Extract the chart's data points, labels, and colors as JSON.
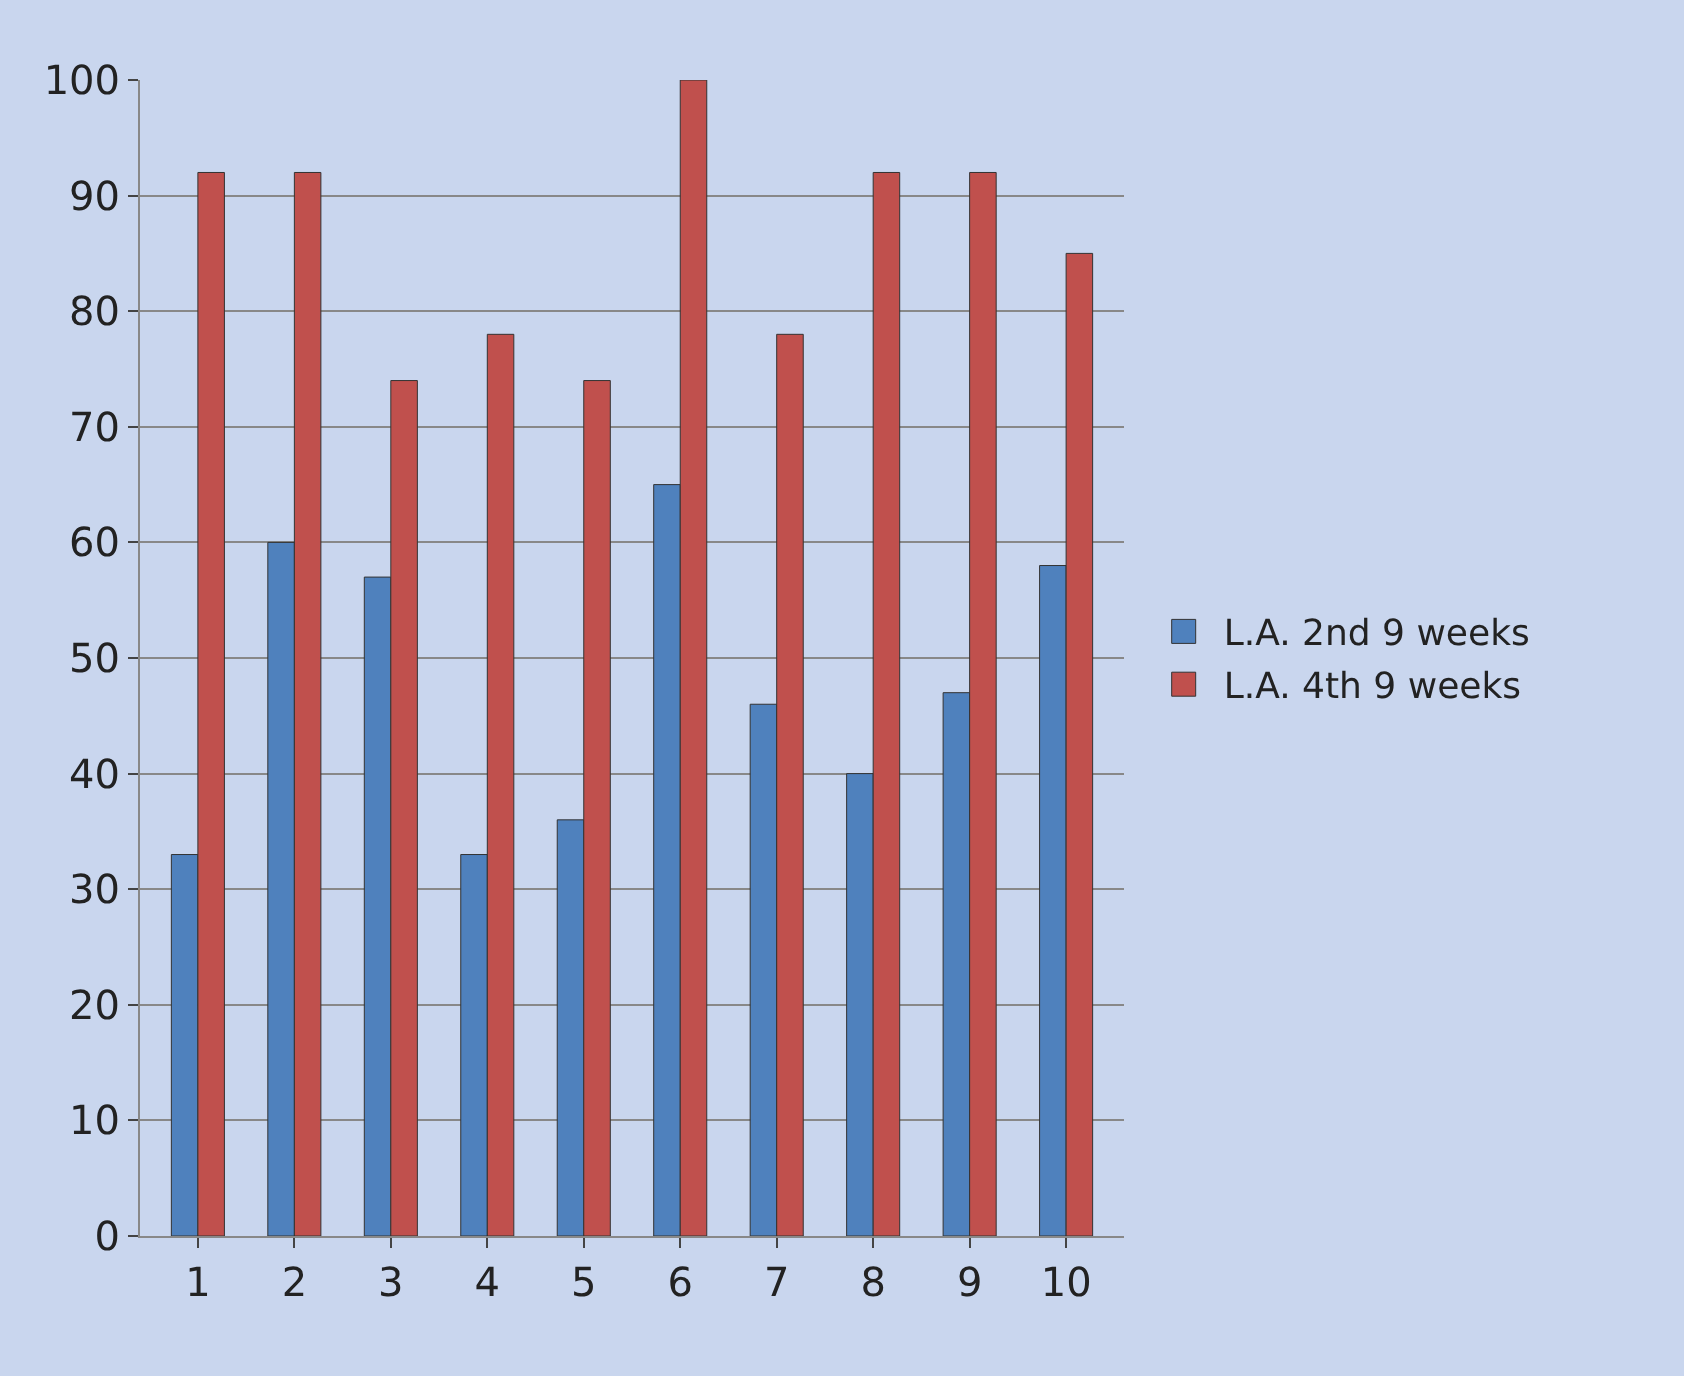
{
  "chart_data": {
    "type": "bar",
    "categories": [
      "1",
      "2",
      "3",
      "4",
      "5",
      "6",
      "7",
      "8",
      "9",
      "10"
    ],
    "series": [
      {
        "name": "L.A. 2nd 9 weeks",
        "color": "#4f81bd",
        "values": [
          33,
          60,
          57,
          33,
          36,
          65,
          46,
          40,
          47,
          58
        ]
      },
      {
        "name": "L.A. 4th 9 weeks",
        "color": "#c0504d",
        "values": [
          92,
          92,
          74,
          78,
          74,
          100,
          78,
          92,
          92,
          85
        ]
      }
    ],
    "ylim": [
      0,
      100
    ],
    "yticks": [
      0,
      10,
      20,
      30,
      40,
      50,
      60,
      70,
      80,
      90,
      100
    ],
    "grid": "y",
    "legend": "right"
  }
}
